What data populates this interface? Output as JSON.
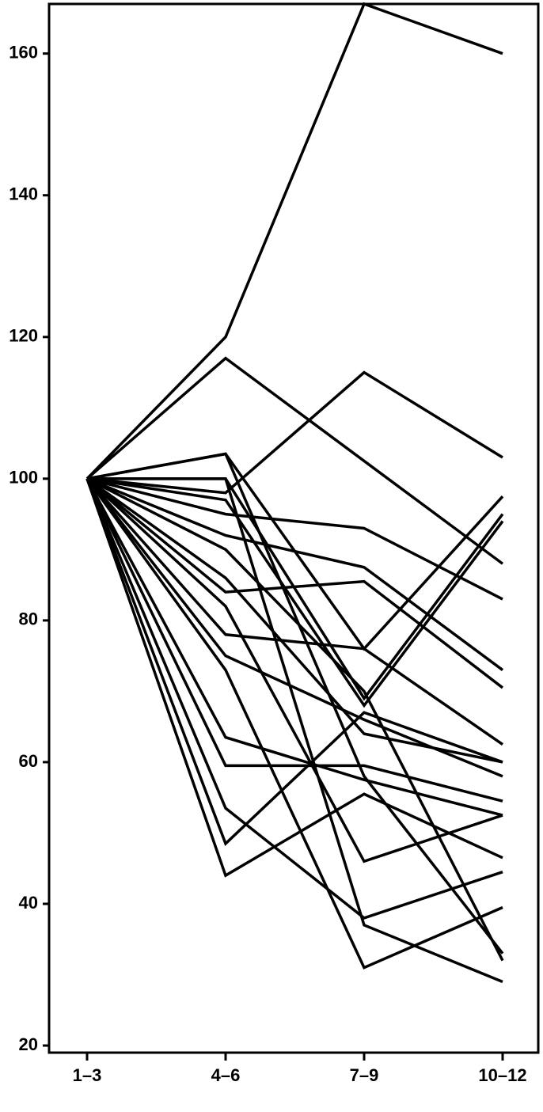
{
  "chart_data": {
    "type": "line",
    "categories": [
      "1–3",
      "4–6",
      "7–9",
      "10–12"
    ],
    "ylim": [
      19,
      167
    ],
    "yticks": [
      20,
      40,
      60,
      80,
      100,
      120,
      140,
      160
    ],
    "grid": false,
    "series": [
      {
        "color": "#000000",
        "values": [
          100,
          120,
          167,
          160
        ]
      },
      {
        "color": "#000000",
        "values": [
          100,
          117,
          102.5,
          88
        ]
      },
      {
        "color": "#000000",
        "values": [
          100,
          98,
          115,
          103
        ]
      },
      {
        "color": "#000000",
        "values": [
          100,
          103.5,
          76,
          97.5
        ]
      },
      {
        "color": "#000000",
        "values": [
          100,
          100,
          69,
          95
        ]
      },
      {
        "color": "#000000",
        "values": [
          100,
          97,
          68,
          94
        ]
      },
      {
        "color": "#000000",
        "values": [
          100,
          95,
          93,
          83
        ]
      },
      {
        "color": "#000000",
        "values": [
          100,
          92,
          87.5,
          73
        ]
      },
      {
        "color": "#000000",
        "values": [
          100,
          84,
          85.5,
          70.5
        ]
      },
      {
        "color": "#000000",
        "values": [
          100,
          78,
          76,
          62.5
        ]
      },
      {
        "color": "#000000",
        "values": [
          100,
          75,
          66,
          58
        ]
      },
      {
        "color": "#000000",
        "values": [
          100,
          86,
          64,
          60
        ]
      },
      {
        "color": "#000000",
        "values": [
          100,
          63.5,
          57.5,
          52.5
        ]
      },
      {
        "color": "#000000",
        "values": [
          100,
          59.5,
          59.5,
          54.5
        ]
      },
      {
        "color": "#000000",
        "values": [
          100,
          48.5,
          67,
          60
        ]
      },
      {
        "color": "#000000",
        "values": [
          100,
          44,
          55.5,
          46.5
        ]
      },
      {
        "color": "#000000",
        "values": [
          100,
          53.5,
          38,
          44.5
        ]
      },
      {
        "color": "#000000",
        "values": [
          100,
          73,
          31,
          39.5
        ]
      },
      {
        "color": "#000000",
        "values": [
          100,
          82,
          46,
          52.5
        ]
      },
      {
        "color": "#000000",
        "values": [
          100,
          90,
          70,
          32
        ]
      },
      {
        "color": "#000000",
        "values": [
          100,
          100,
          37,
          29
        ]
      },
      {
        "color": "#000000",
        "values": [
          100,
          103.5,
          58,
          33
        ]
      }
    ]
  }
}
